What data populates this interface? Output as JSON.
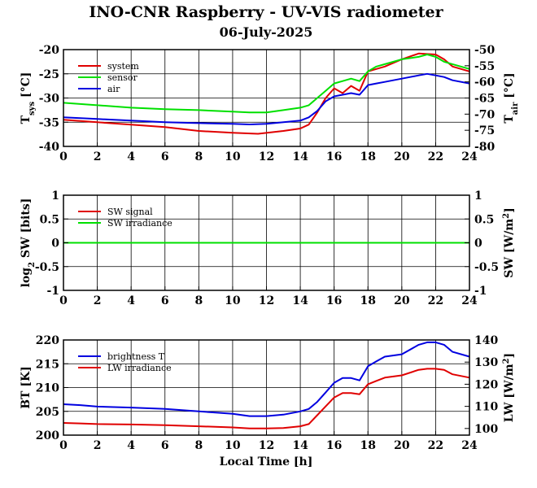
{
  "header": {
    "title": "INO-CNR Raspberry - UV-VIS radiometer",
    "date": "06-July-2025"
  },
  "xaxis": {
    "label": "Local Time [h]",
    "range": [
      0,
      24
    ],
    "ticks": [
      "0",
      "2",
      "4",
      "6",
      "8",
      "10",
      "12",
      "14",
      "16",
      "18",
      "20",
      "22",
      "24"
    ]
  },
  "colors": {
    "red": "#e00000",
    "green": "#00e000",
    "blue": "#0000e0"
  },
  "chart_data": [
    {
      "type": "line",
      "title": "",
      "ylabel_left": "T",
      "ylabel_left_sub": "sys",
      "ylabel_left_unit": " [°C]",
      "ylabel_right": "T",
      "ylabel_right_sub": "air",
      "ylabel_right_unit": " [°C]",
      "ylim": [
        -40,
        -20
      ],
      "ylim_right": [
        -80,
        -50
      ],
      "left_ticks": [
        "-20",
        "-25",
        "-30",
        "-35",
        "-40"
      ],
      "right_ticks": [
        "-50",
        "-55",
        "-60",
        "-65",
        "-70",
        "-75",
        "-80"
      ],
      "legend_position": "top-left",
      "grid": true,
      "series": [
        {
          "name": "system",
          "color": "red",
          "axis": "left",
          "x": [
            0,
            2,
            4,
            6,
            8,
            10,
            11.5,
            13,
            14,
            14.5,
            15,
            15.5,
            16,
            16.5,
            17,
            17.5,
            18,
            18.5,
            19,
            20,
            21,
            22,
            22.5,
            23,
            24
          ],
          "y": [
            -34.5,
            -35,
            -35.5,
            -36,
            -36.8,
            -37.2,
            -37.4,
            -36.8,
            -36.3,
            -35.5,
            -33,
            -30,
            -28,
            -29,
            -27.5,
            -28.5,
            -24.5,
            -24,
            -23.5,
            -22,
            -20.8,
            -21,
            -22,
            -23.5,
            -24.5
          ]
        },
        {
          "name": "sensor",
          "color": "green",
          "axis": "left",
          "x": [
            0,
            2,
            4,
            6,
            8,
            10,
            11,
            12,
            13,
            14,
            14.5,
            15,
            15.5,
            16,
            16.5,
            17,
            17.5,
            18,
            18.5,
            19,
            20,
            21,
            21.5,
            22,
            22.5,
            23,
            24
          ],
          "y": [
            -31,
            -31.5,
            -32,
            -32.3,
            -32.5,
            -32.8,
            -33,
            -33,
            -32.5,
            -32,
            -31.5,
            -30,
            -28.5,
            -27,
            -26.5,
            -26,
            -26.5,
            -24.5,
            -23.5,
            -23,
            -22,
            -21.5,
            -21,
            -21.5,
            -22.5,
            -23,
            -24
          ]
        },
        {
          "name": "air",
          "color": "blue",
          "axis": "right",
          "x": [
            0,
            2,
            4,
            6,
            8,
            10,
            11,
            12,
            13,
            14,
            14.5,
            15,
            15.5,
            16,
            16.5,
            17,
            17.5,
            18,
            18.5,
            19,
            20,
            21,
            21.5,
            22,
            22.5,
            23,
            24
          ],
          "y": [
            -71,
            -71.5,
            -72,
            -72.5,
            -72.8,
            -73,
            -73.2,
            -73,
            -72.5,
            -72,
            -71,
            -69,
            -66,
            -64.5,
            -64,
            -63.5,
            -64,
            -61,
            -60.5,
            -60,
            -59,
            -58,
            -57.5,
            -58,
            -58.5,
            -59.5,
            -60.5
          ]
        }
      ]
    },
    {
      "type": "line",
      "title": "",
      "ylabel_left": "log",
      "ylabel_left_sub": "2",
      "ylabel_left_unit": " SW [bits]",
      "ylabel_right": "SW [W/m",
      "ylabel_right_sup": "2",
      "ylabel_right_unit": "]",
      "ylim": [
        -1,
        1
      ],
      "ylim_right": [
        -1,
        1
      ],
      "left_ticks": [
        "1",
        "0.5",
        "0",
        "-0.5",
        "-1"
      ],
      "right_ticks": [
        "1",
        "0.5",
        "0",
        "-0.5",
        "-1"
      ],
      "legend_position": "top-left",
      "grid": true,
      "series": [
        {
          "name": "SW signal",
          "color": "red",
          "axis": "left",
          "x": [
            0,
            24
          ],
          "y": [
            0,
            0
          ]
        },
        {
          "name": "SW irradiance",
          "color": "green",
          "axis": "right",
          "x": [
            0,
            24
          ],
          "y": [
            0,
            0
          ]
        }
      ]
    },
    {
      "type": "line",
      "title": "",
      "ylabel_left": "BT [K]",
      "ylabel_right": "LW [W/m",
      "ylabel_right_sup": "2",
      "ylabel_right_unit": "]",
      "ylim": [
        200,
        220
      ],
      "ylim_right": [
        97,
        140
      ],
      "left_ticks": [
        "220",
        "215",
        "210",
        "205",
        "200"
      ],
      "right_ticks": [
        "140",
        "130",
        "120",
        "110",
        "100"
      ],
      "legend_position": "top-left",
      "grid": true,
      "series": [
        {
          "name": "brightness T",
          "color": "blue",
          "axis": "left",
          "x": [
            0,
            1,
            2,
            4,
            6,
            8,
            10,
            11,
            12,
            13,
            14,
            14.5,
            15,
            15.5,
            16,
            16.5,
            17,
            17.5,
            18,
            18.5,
            19,
            20,
            21,
            21.5,
            22,
            22.5,
            23,
            24
          ],
          "y": [
            206.5,
            206.3,
            206,
            205.8,
            205.5,
            205,
            204.5,
            204,
            204,
            204.3,
            205,
            205.5,
            207,
            209,
            211,
            212,
            212,
            211.5,
            214.5,
            215.5,
            216.5,
            217,
            219,
            219.5,
            219.5,
            219,
            217.5,
            216.5
          ]
        },
        {
          "name": "LW irradiance",
          "color": "red",
          "axis": "right",
          "x": [
            0,
            1,
            2,
            4,
            6,
            8,
            10,
            11,
            12,
            13,
            14,
            14.5,
            15,
            15.5,
            16,
            16.5,
            17,
            17.5,
            18,
            18.5,
            19,
            20,
            21,
            21.5,
            22,
            22.5,
            23,
            24
          ],
          "y": [
            102.5,
            102.3,
            102,
            101.8,
            101.5,
            101,
            100.5,
            100,
            100,
            100.2,
            101,
            102,
            106,
            110,
            114,
            116,
            116,
            115.5,
            120,
            121.5,
            123,
            124,
            126.5,
            127,
            127,
            126.5,
            124.5,
            123
          ]
        }
      ]
    }
  ]
}
